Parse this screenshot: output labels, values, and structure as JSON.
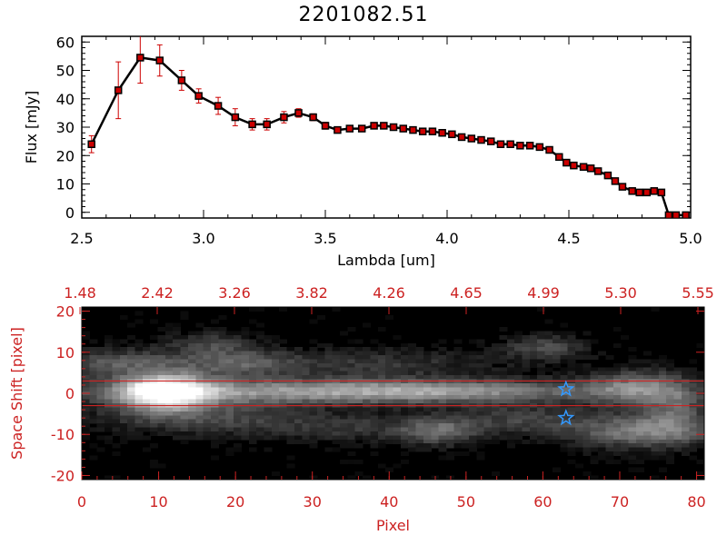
{
  "title": "2201082.51",
  "colors": {
    "line": "#000000",
    "error": "#cc0000",
    "marker": "#cc0000",
    "axis2": "#cc2222",
    "star": "#3399ff"
  },
  "chart_data": [
    {
      "type": "line",
      "title": "2201082.51",
      "xlabel": "Lambda [um]",
      "ylabel": "Flux [mJy]",
      "xlim": [
        2.5,
        5.0
      ],
      "ylim": [
        -2,
        62
      ],
      "xticks": [
        "2.5",
        "3.0",
        "3.5",
        "4.0",
        "4.5",
        "5.0"
      ],
      "yticks": [
        "0",
        "10",
        "20",
        "30",
        "40",
        "50",
        "60"
      ],
      "x": [
        2.54,
        2.65,
        2.74,
        2.82,
        2.91,
        2.98,
        3.06,
        3.13,
        3.2,
        3.26,
        3.33,
        3.39,
        3.45,
        3.5,
        3.55,
        3.6,
        3.65,
        3.7,
        3.74,
        3.78,
        3.82,
        3.86,
        3.9,
        3.94,
        3.98,
        4.02,
        4.06,
        4.1,
        4.14,
        4.18,
        4.22,
        4.26,
        4.3,
        4.34,
        4.38,
        4.42,
        4.46,
        4.49,
        4.52,
        4.56,
        4.59,
        4.62,
        4.66,
        4.69,
        4.72,
        4.76,
        4.79,
        4.82,
        4.85,
        4.88,
        4.91,
        4.94,
        4.98
      ],
      "y": [
        24,
        43,
        54.5,
        53.5,
        46.5,
        41,
        37.5,
        33.5,
        31,
        31,
        33.5,
        35,
        33.5,
        30.5,
        29,
        29.5,
        29.5,
        30.5,
        30.5,
        30,
        29.5,
        29,
        28.5,
        28.5,
        28,
        27.5,
        26.5,
        26,
        25.5,
        25,
        24,
        24,
        23.5,
        23.5,
        23,
        22,
        19.5,
        17.5,
        16.5,
        16,
        15.5,
        14.5,
        13,
        11,
        9,
        7.5,
        7,
        7,
        7.5,
        7,
        -1,
        -1,
        -1
      ],
      "err": [
        3,
        10,
        9,
        5.5,
        3.5,
        2.5,
        3,
        3,
        2,
        2,
        2,
        1.5,
        1.2,
        1.2,
        1,
        1,
        1,
        1,
        1,
        1,
        1,
        1,
        1,
        1,
        1,
        1,
        1,
        1,
        1,
        1,
        1,
        1,
        1,
        1,
        1,
        1,
        1,
        1,
        1,
        1,
        1,
        1,
        1,
        1,
        1,
        1,
        1,
        1,
        1,
        1,
        0,
        0,
        0
      ]
    },
    {
      "type": "heatmap",
      "xlabel": "Pixel",
      "ylabel": "Space Shift [pixel]",
      "xlim": [
        0,
        81
      ],
      "ylim": [
        -21,
        21
      ],
      "xticks": [
        "0",
        "10",
        "20",
        "30",
        "40",
        "50",
        "60",
        "70",
        "80"
      ],
      "yticks": [
        "-20",
        "-10",
        "0",
        "10",
        "20"
      ],
      "top_axis_ticks": [
        "1.48",
        "2.42",
        "3.26",
        "3.82",
        "4.26",
        "4.65",
        "4.99",
        "5.30",
        "5.55"
      ],
      "hlines": [
        3,
        -3
      ],
      "markers": [
        {
          "x": 63,
          "y": 1
        },
        {
          "x": 63,
          "y": -6
        }
      ],
      "blobs": [
        {
          "x": 11,
          "y": 0,
          "sx": 4,
          "sy": 3,
          "a": 1.0
        },
        {
          "x": 28,
          "y": 0,
          "sx": 22,
          "sy": 2.2,
          "a": 0.55
        },
        {
          "x": 50,
          "y": 0,
          "sx": 14,
          "sy": 2,
          "a": 0.3
        },
        {
          "x": 73,
          "y": 1,
          "sx": 5,
          "sy": 3,
          "a": 0.45
        },
        {
          "x": 74,
          "y": -10,
          "sx": 7,
          "sy": 3,
          "a": 0.5
        },
        {
          "x": 61,
          "y": 11,
          "sx": 4,
          "sy": 2.2,
          "a": 0.3
        },
        {
          "x": 47,
          "y": -10,
          "sx": 3.5,
          "sy": 2.5,
          "a": 0.35
        },
        {
          "x": 5,
          "y": 7,
          "sx": 7,
          "sy": 2.5,
          "a": 0.35
        },
        {
          "x": 17,
          "y": 12,
          "sx": 4,
          "sy": 2,
          "a": 0.25
        },
        {
          "x": 21,
          "y": 7,
          "sx": 5,
          "sy": 2.5,
          "a": 0.3
        },
        {
          "x": 14,
          "y": -6,
          "sx": 9,
          "sy": 3,
          "a": 0.3
        },
        {
          "x": 35,
          "y": -9,
          "sx": 10,
          "sy": 2.5,
          "a": 0.22
        },
        {
          "x": 38,
          "y": 7,
          "sx": 12,
          "sy": 2.5,
          "a": 0.22
        },
        {
          "x": 58,
          "y": -7,
          "sx": 6,
          "sy": 2.5,
          "a": 0.25
        },
        {
          "x": 78,
          "y": -4,
          "sx": 3,
          "sy": 4,
          "a": 0.3
        }
      ]
    }
  ]
}
